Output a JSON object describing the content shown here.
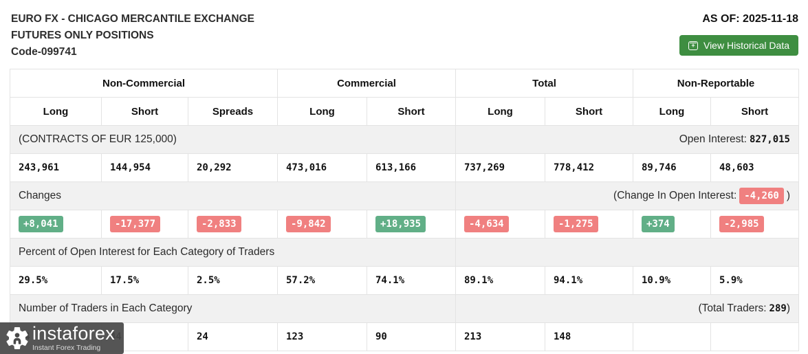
{
  "header": {
    "title_line1": "EURO FX - CHICAGO MERCANTILE EXCHANGE",
    "title_line2": "FUTURES ONLY POSITIONS",
    "code": "Code-099741",
    "as_of": "AS OF: 2025-11-18",
    "history_button_label": "View Historical Data"
  },
  "table": {
    "groups": [
      "Non-Commercial",
      "Commercial",
      "Total",
      "Non-Reportable"
    ],
    "subheaders": [
      "Long",
      "Short",
      "Spreads",
      "Long",
      "Short",
      "Long",
      "Short",
      "Long",
      "Short"
    ],
    "contracts_label": "(CONTRACTS OF EUR 125,000)",
    "open_interest_label": "Open Interest:",
    "open_interest_value": "827,015",
    "positions": [
      "243,961",
      "144,954",
      "20,292",
      "473,016",
      "613,166",
      "737,269",
      "778,412",
      "89,746",
      "48,603"
    ],
    "changes_label": "Changes",
    "change_oi_label": "(Change In Open Interest:",
    "change_oi_value": "-4,260",
    "change_oi_suffix": ")",
    "changes": [
      "+8,041",
      "-17,377",
      "-2,833",
      "-9,842",
      "+18,935",
      "-4,634",
      "-1,275",
      "+374",
      "-2,985"
    ],
    "percent_label": "Percent of Open Interest for Each Category of Traders",
    "percents": [
      "29.5%",
      "17.5%",
      "2.5%",
      "57.2%",
      "74.1%",
      "89.1%",
      "94.1%",
      "10.9%",
      "5.9%"
    ],
    "traders_label": "Number of Traders in Each Category",
    "total_traders_label": "(Total Traders:",
    "total_traders_value": "289",
    "total_traders_suffix": ")",
    "traders": [
      "84",
      "44",
      "24",
      "123",
      "90",
      "213",
      "148",
      "",
      ""
    ]
  },
  "watermark": {
    "brand": "instaforex",
    "tagline": "Instant Forex Trading"
  },
  "colors": {
    "badge_up": "#61af87",
    "badge_down": "#f08080",
    "button_green": "#3e8e41",
    "band_bg": "#f1f1f1",
    "border_col": "#e3e3e3"
  }
}
